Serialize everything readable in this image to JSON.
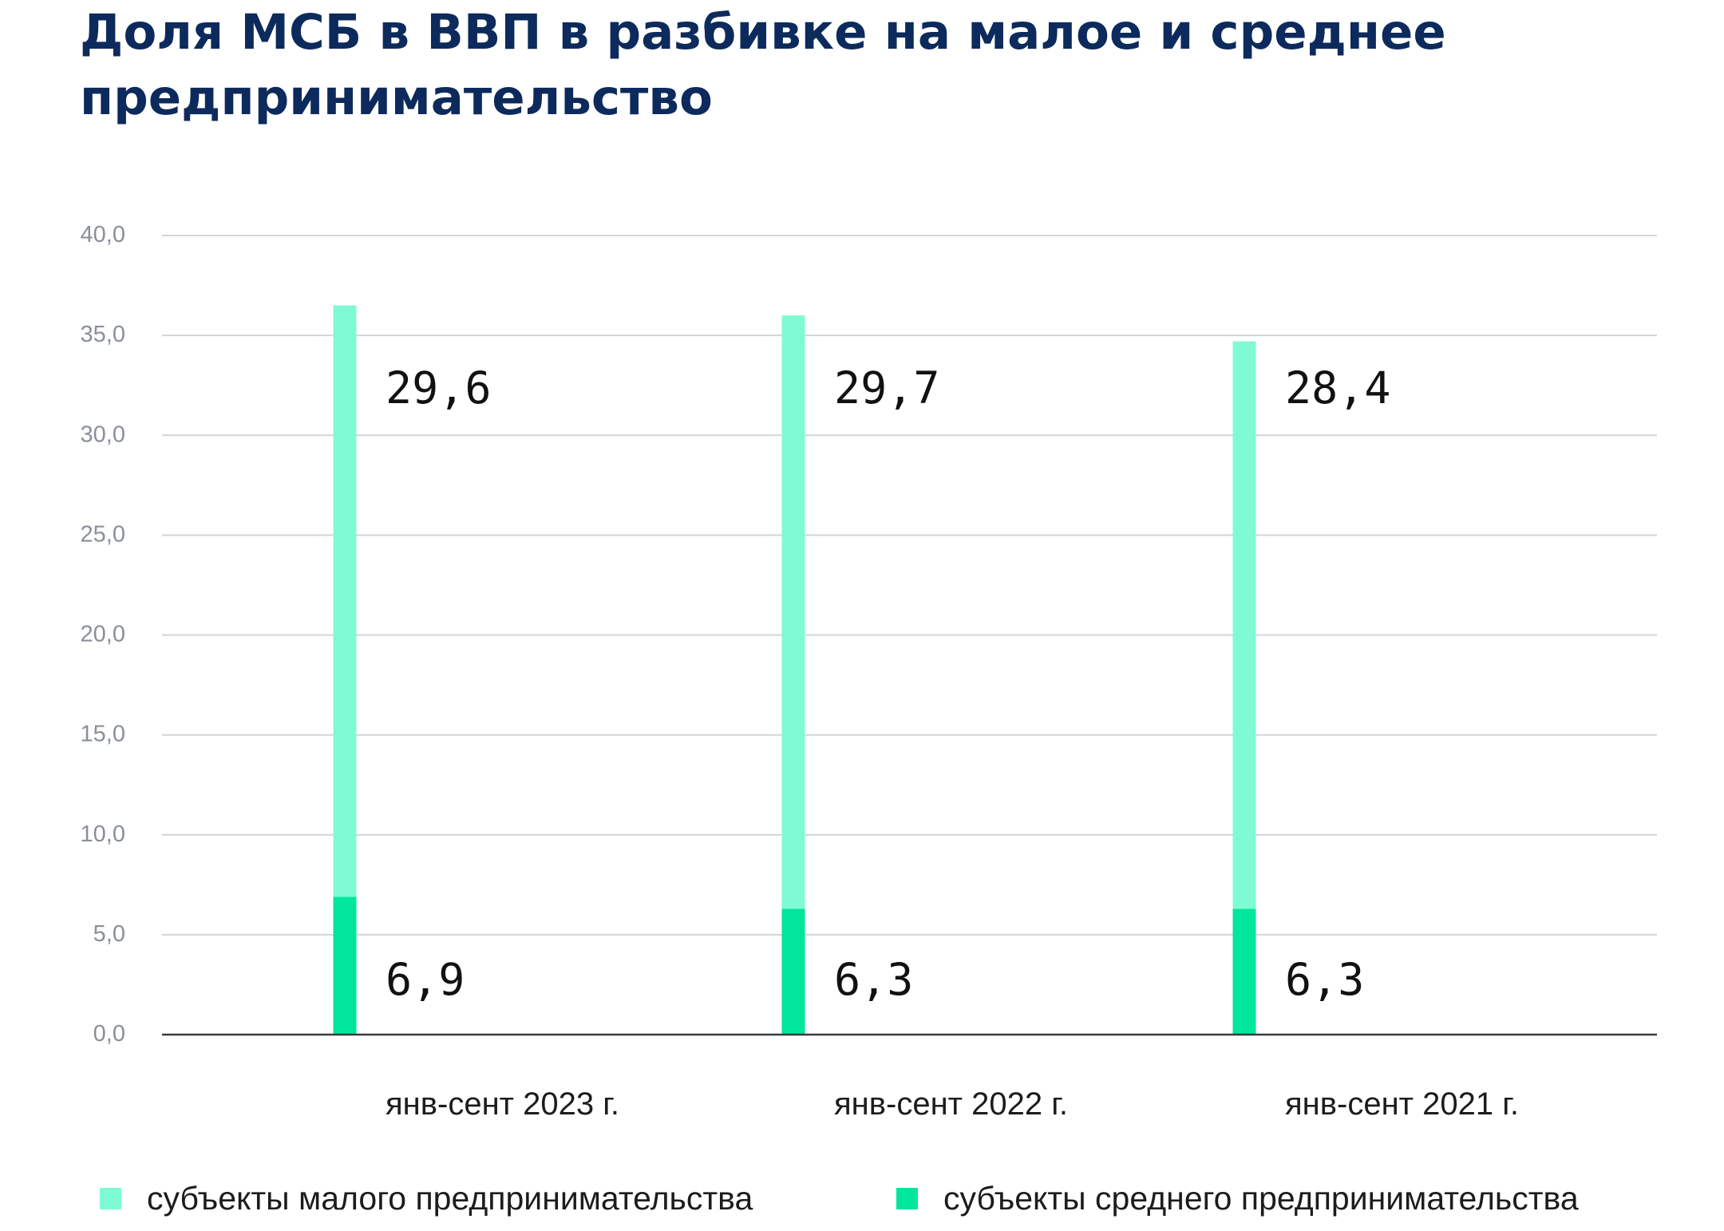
{
  "title": "Доля МСБ в ВВП в разбивке на малое и среднее предпринимательство",
  "colors": {
    "title": "#0d2a5c",
    "small_business": "#7ffbd3",
    "medium_business": "#00e69a",
    "grid": "#d2d4d8",
    "axis": "#3a3a3a"
  },
  "chart_data": {
    "type": "bar",
    "stacked": true,
    "title": "Доля МСБ в ВВП в разбивке на малое и среднее предпринимательство",
    "categories": [
      "янв-сент 2023 г.",
      "янв-сент 2022 г.",
      "янв-сент 2021 г."
    ],
    "series": [
      {
        "name": "субъекты среднего предпринимательства",
        "color": "#00e69a",
        "values": [
          6.9,
          6.3,
          6.3
        ],
        "labels": [
          "6,9",
          "6,3",
          "6,3"
        ]
      },
      {
        "name": "субъекты малого предпринимательства",
        "color": "#7ffbd3",
        "values": [
          29.6,
          29.7,
          28.4
        ],
        "labels": [
          "29,6",
          "29,7",
          "28,4"
        ]
      }
    ],
    "ylim": [
      0,
      40
    ],
    "yticks": [
      0,
      5,
      10,
      15,
      20,
      25,
      30,
      35,
      40
    ],
    "ytick_labels": [
      "0,0",
      "5,0",
      "10,0",
      "15,0",
      "20,0",
      "25,0",
      "30,0",
      "35,0",
      "40,0"
    ],
    "xlabel": "",
    "ylabel": "",
    "grid": true,
    "legend_position": "bottom"
  },
  "legend": {
    "small": "субъекты малого предпринимательства",
    "medium": "субъекты среднего предпринимательства"
  }
}
